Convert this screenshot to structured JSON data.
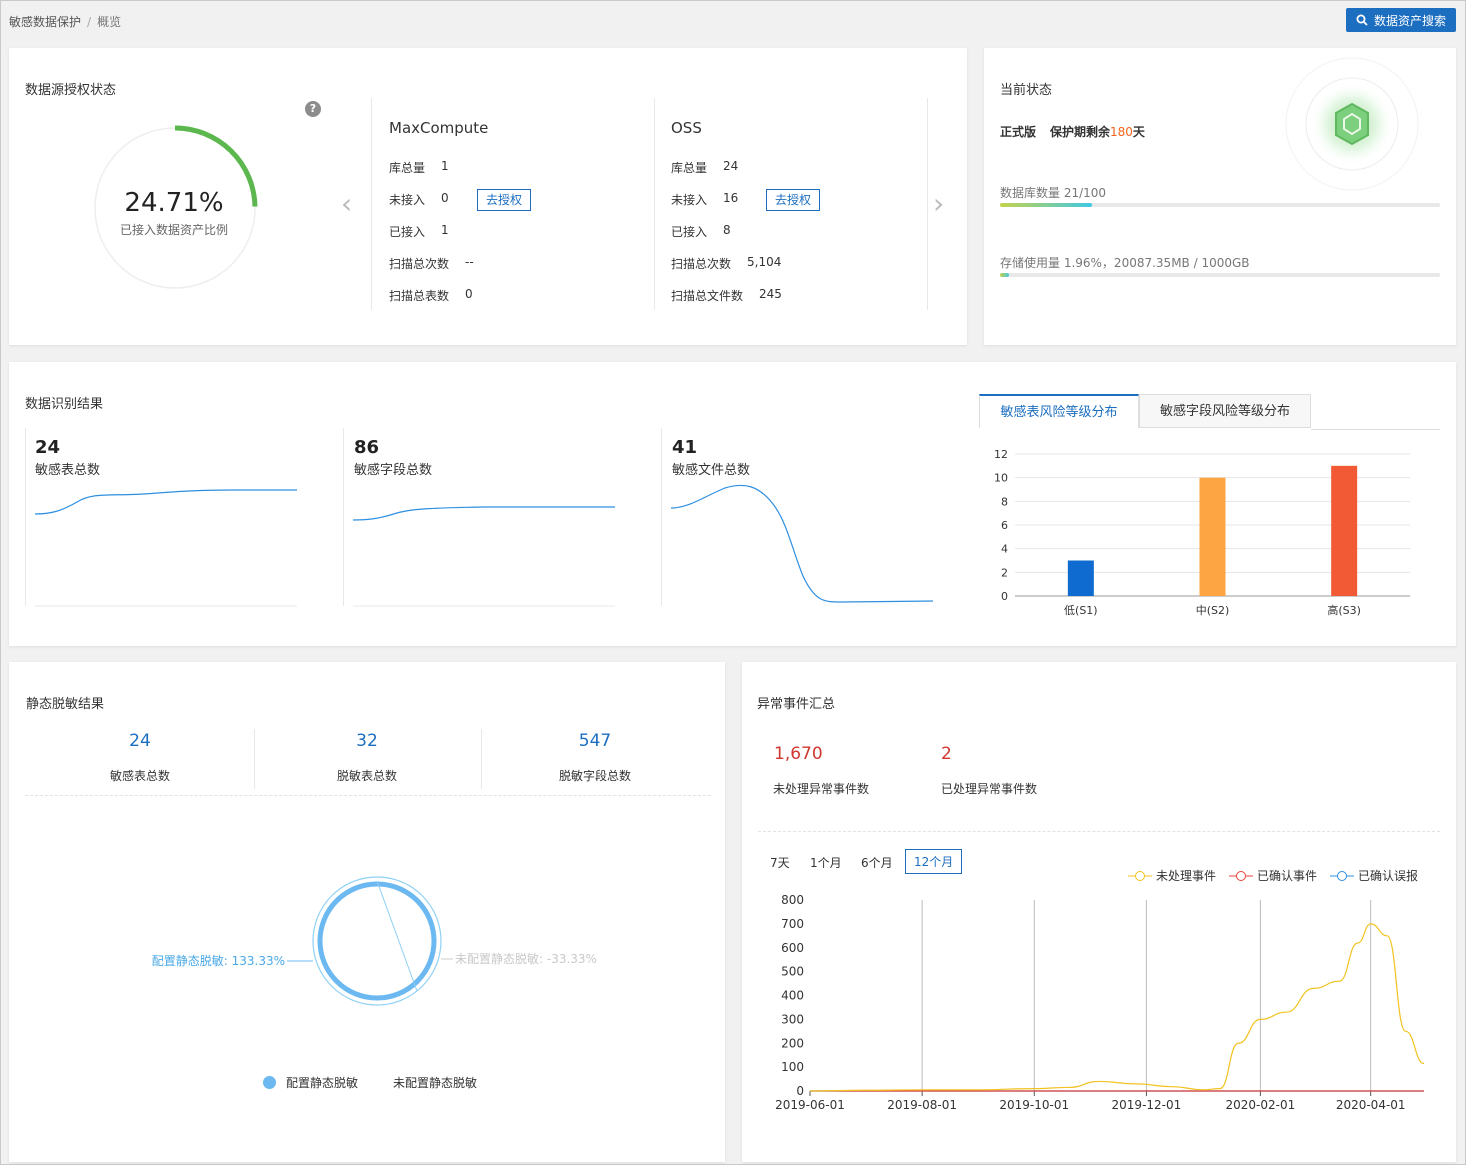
{
  "breadcrumb": {
    "parent": "敏感数据保护",
    "separator": "/",
    "current": "概览"
  },
  "header": {
    "search_button": "数据资产搜索"
  },
  "auth_status": {
    "title": "数据源授权状态",
    "help": "?",
    "ratio": "24.71%",
    "ratio_label": "已接入数据资产比例",
    "ratio_value": 0.2471,
    "sources": [
      {
        "name": "MaxCompute",
        "rows": [
          {
            "label": "库总量",
            "value": "1"
          },
          {
            "label": "未接入",
            "value": "0",
            "action": "去授权"
          },
          {
            "label": "已接入",
            "value": "1"
          },
          {
            "label": "扫描总次数",
            "value": "--"
          },
          {
            "label": "扫描总表数",
            "value": "0"
          }
        ]
      },
      {
        "name": "OSS",
        "rows": [
          {
            "label": "库总量",
            "value": "24"
          },
          {
            "label": "未接入",
            "value": "16",
            "action": "去授权"
          },
          {
            "label": "已接入",
            "value": "8"
          },
          {
            "label": "扫描总次数",
            "value": "5,104"
          },
          {
            "label": "扫描总文件数",
            "value": "245"
          }
        ]
      }
    ],
    "prev_arrow": "‹",
    "next_arrow": "›"
  },
  "current_status": {
    "title": "当前状态",
    "edition": "正式版",
    "protection_prefix": "保护期剩余",
    "protection_days": "180",
    "protection_suffix": "天",
    "db_count_label": "数据库数量 21/100",
    "db_count_ratio": 0.21,
    "storage_label": "存储使用量 1.96%，20087.35MB / 1000GB",
    "storage_ratio": 0.0196,
    "colors": {
      "orange": "#f5631b",
      "bar_start": "#c5d34a",
      "bar_end": "#40c8e5"
    }
  },
  "identify": {
    "title": "数据识别结果",
    "stats": [
      {
        "value": "24",
        "label": "敏感表总数"
      },
      {
        "value": "86",
        "label": "敏感字段总数"
      },
      {
        "value": "41",
        "label": "敏感文件总数"
      }
    ],
    "tabs": [
      "敏感表风险等级分布",
      "敏感字段风险等级分布"
    ],
    "active_tab": 0
  },
  "chart_data": [
    {
      "type": "bar",
      "categories": [
        "低(S1)",
        "中(S2)",
        "高(S3)"
      ],
      "values": [
        3,
        10,
        11
      ],
      "ylim": [
        0,
        12
      ],
      "yticks": [
        0,
        2,
        4,
        6,
        8,
        10,
        12
      ],
      "colors": [
        "#0f6bcf",
        "#fca542",
        "#f15a35"
      ],
      "grid": true
    },
    {
      "type": "pie",
      "categories": [
        "配置静态脱敏",
        "未配置静态脱敏"
      ],
      "values": [
        133.33,
        -33.33
      ],
      "labels": [
        "配置静态脱敏: 133.33%",
        "未配置静态脱敏: -33.33%"
      ],
      "colors": [
        "#6cb8f0",
        "#cccccc"
      ],
      "legend": "bottom"
    },
    {
      "type": "line",
      "x_ticks": [
        "2019-06-01",
        "2019-08-01",
        "2019-10-01",
        "2019-12-01",
        "2020-02-01",
        "2020-04-01"
      ],
      "ylim": [
        0,
        800
      ],
      "yticks": [
        0,
        100,
        200,
        300,
        400,
        500,
        600,
        700,
        800
      ],
      "series": [
        {
          "name": "未处理事件",
          "color": "#f2c21f",
          "points": [
            [
              "2019-06-01",
              0
            ],
            [
              "2019-07-01",
              3
            ],
            [
              "2019-08-01",
              5
            ],
            [
              "2019-09-01",
              5
            ],
            [
              "2019-10-01",
              10
            ],
            [
              "2019-10-20",
              15
            ],
            [
              "2019-11-05",
              40
            ],
            [
              "2019-11-25",
              30
            ],
            [
              "2019-12-15",
              18
            ],
            [
              "2020-01-01",
              5
            ],
            [
              "2020-01-10",
              10
            ],
            [
              "2020-01-20",
              200
            ],
            [
              "2020-02-01",
              300
            ],
            [
              "2020-02-15",
              330
            ],
            [
              "2020-03-01",
              430
            ],
            [
              "2020-03-15",
              460
            ],
            [
              "2020-03-25",
              620
            ],
            [
              "2020-04-01",
              700
            ],
            [
              "2020-04-10",
              650
            ],
            [
              "2020-04-20",
              250
            ],
            [
              "2020-04-30",
              115
            ]
          ]
        },
        {
          "name": "已确认事件",
          "color": "#e8403a",
          "points": [
            [
              "2019-06-01",
              0
            ],
            [
              "2020-04-30",
              0
            ]
          ]
        },
        {
          "name": "已确认误报",
          "color": "#2e8fe0",
          "points": [
            [
              "2019-06-01",
              0
            ],
            [
              "2020-04-30",
              0
            ]
          ]
        }
      ],
      "legend": "top-right"
    }
  ],
  "static_mask": {
    "title": "静态脱敏结果",
    "stats": [
      {
        "value": "24",
        "label": "敏感表总数"
      },
      {
        "value": "32",
        "label": "脱敏表总数"
      },
      {
        "value": "547",
        "label": "脱敏字段总数"
      }
    ]
  },
  "events": {
    "title": "异常事件汇总",
    "unhandled_value": "1,670",
    "unhandled_label": "未处理异常事件数",
    "handled_value": "2",
    "handled_label": "已处理异常事件数",
    "periods": [
      "7天",
      "1个月",
      "6个月",
      "12个月"
    ],
    "active_period": 3
  }
}
